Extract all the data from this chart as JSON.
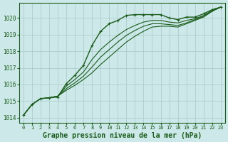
{
  "background_color": "#cce8e8",
  "grid_color": "#a8c8c8",
  "line_color": "#1a5c1a",
  "marker_color": "#1a5c1a",
  "xlabel": "Graphe pression niveau de la mer (hPa)",
  "xlabel_fontsize": 7,
  "xlim": [
    -0.5,
    23.5
  ],
  "ylim": [
    1013.7,
    1020.9
  ],
  "yticks": [
    1014,
    1015,
    1016,
    1017,
    1018,
    1019,
    1020
  ],
  "xticks": [
    0,
    1,
    2,
    3,
    4,
    5,
    6,
    7,
    8,
    9,
    10,
    11,
    12,
    13,
    14,
    15,
    16,
    17,
    18,
    19,
    20,
    21,
    22,
    23
  ],
  "series": [
    [
      1014.15,
      1014.8,
      1015.15,
      1015.2,
      1015.25,
      1016.05,
      1016.55,
      1017.15,
      1018.35,
      1019.2,
      1019.65,
      1019.85,
      1020.15,
      1020.2,
      1020.2,
      1020.2,
      1020.2,
      1020.0,
      1019.9,
      1020.05,
      1020.05,
      1020.25,
      1020.5,
      1020.65
    ],
    [
      1014.15,
      1014.8,
      1015.15,
      1015.2,
      1015.3,
      1015.9,
      1016.3,
      1016.75,
      1017.5,
      1018.1,
      1018.55,
      1018.95,
      1019.3,
      1019.55,
      1019.75,
      1019.85,
      1019.85,
      1019.75,
      1019.7,
      1019.85,
      1019.95,
      1020.15,
      1020.45,
      1020.65
    ],
    [
      1014.15,
      1014.8,
      1015.15,
      1015.2,
      1015.3,
      1015.75,
      1016.1,
      1016.5,
      1017.05,
      1017.65,
      1018.1,
      1018.55,
      1018.95,
      1019.25,
      1019.5,
      1019.65,
      1019.65,
      1019.6,
      1019.55,
      1019.7,
      1019.9,
      1020.1,
      1020.42,
      1020.65
    ],
    [
      1014.15,
      1014.8,
      1015.15,
      1015.2,
      1015.3,
      1015.65,
      1015.95,
      1016.3,
      1016.7,
      1017.2,
      1017.65,
      1018.1,
      1018.55,
      1018.9,
      1019.2,
      1019.45,
      1019.5,
      1019.5,
      1019.45,
      1019.65,
      1019.85,
      1020.05,
      1020.4,
      1020.65
    ]
  ]
}
